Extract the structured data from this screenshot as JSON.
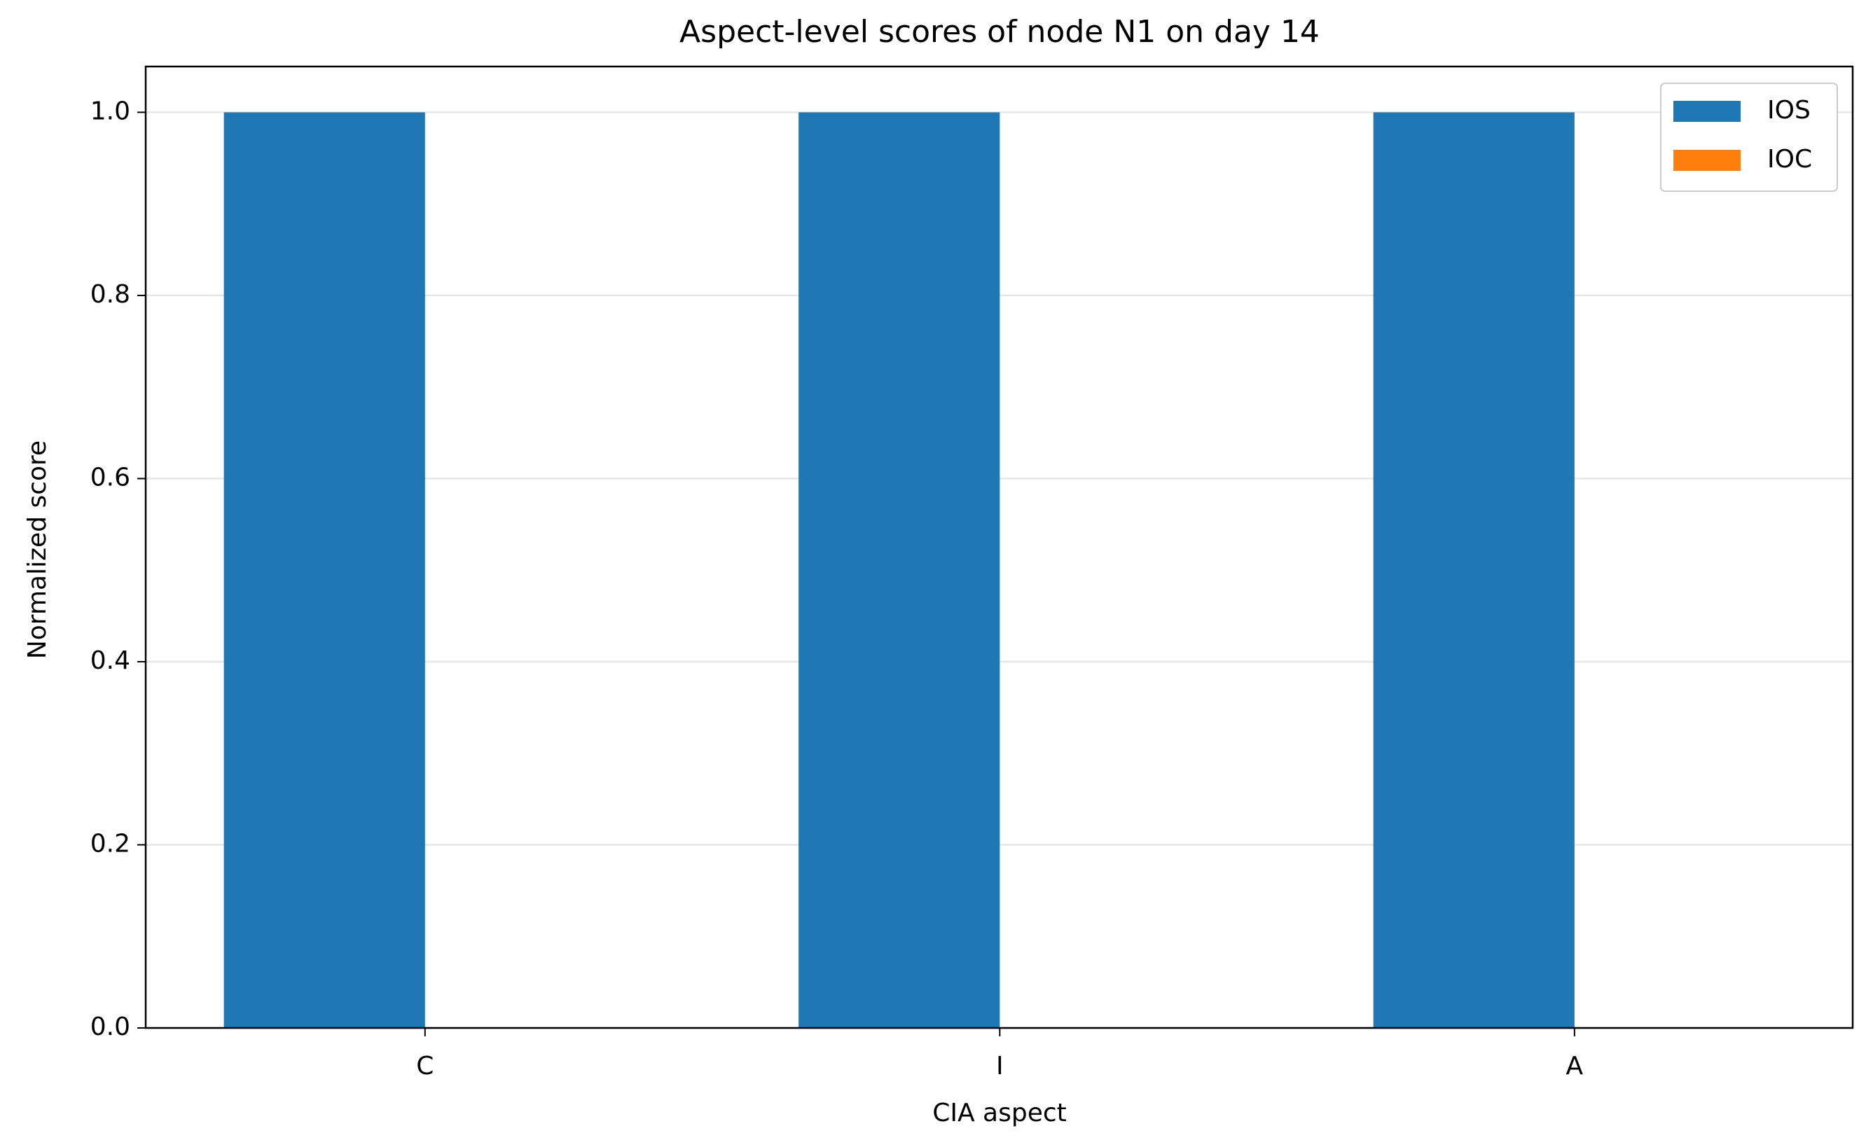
{
  "chart_data": {
    "type": "bar",
    "title": "Aspect-level scores of node N1 on day 14",
    "x_label": "CIA aspect",
    "y_label": "Normalized score",
    "categories": [
      "C",
      "I",
      "A"
    ],
    "series": [
      {
        "name": "IOS",
        "color": "#1f77b4",
        "values": [
          1,
          1,
          1
        ]
      },
      {
        "name": "IOC",
        "color": "#ff7f0e",
        "values": [
          0,
          0,
          0
        ]
      }
    ],
    "ylim": [
      0,
      1.05
    ],
    "yticks": [
      {
        "value": 0,
        "label": "0.0"
      },
      0.2,
      0.4,
      0.6,
      0.8,
      {
        "value": 1,
        "label": "1.0"
      }
    ],
    "grid": true,
    "legend": "upper right"
  }
}
